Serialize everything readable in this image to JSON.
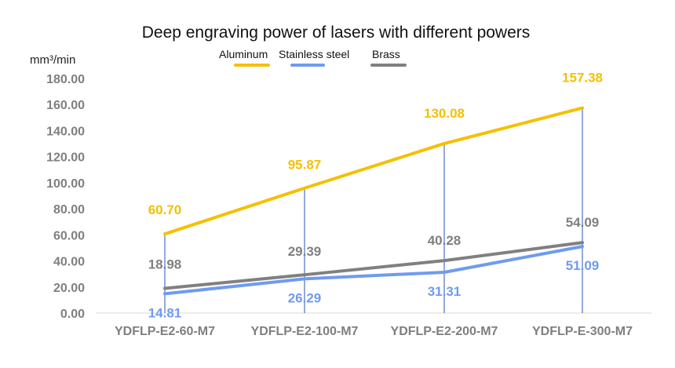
{
  "chart_data": {
    "type": "line",
    "title": "Deep engraving power of lasers with different powers",
    "ylabel": "mm³/min",
    "xlabel": "",
    "categories": [
      "YDFLP-E2-60-M7",
      "YDFLP-E2-100-M7",
      "YDFLP-E2-200-M7",
      "YDFLP-E-300-M7"
    ],
    "ylim": [
      0,
      180
    ],
    "yticks": [
      "0.00",
      "20.00",
      "40.00",
      "60.00",
      "80.00",
      "100.00",
      "120.00",
      "140.00",
      "160.00",
      "180.00"
    ],
    "grid": false,
    "legend_position": "top",
    "drop_lines": true,
    "series": [
      {
        "name": "Aluminum",
        "color": "#f5c000",
        "values": [
          60.7,
          95.87,
          130.08,
          157.38
        ],
        "labels": [
          "60.70",
          "95.87",
          "130.08",
          "157.38"
        ]
      },
      {
        "name": "Stainless steel",
        "color": "#6f9bf0",
        "values": [
          14.81,
          26.29,
          31.31,
          51.09
        ],
        "labels": [
          "14.81",
          "26.29",
          "31.31",
          "51.09"
        ]
      },
      {
        "name": "Brass",
        "color": "#808080",
        "values": [
          18.98,
          29.39,
          40.28,
          54.09
        ],
        "labels": [
          "18.98",
          "29.39",
          "40.28",
          "54.09"
        ]
      }
    ]
  }
}
